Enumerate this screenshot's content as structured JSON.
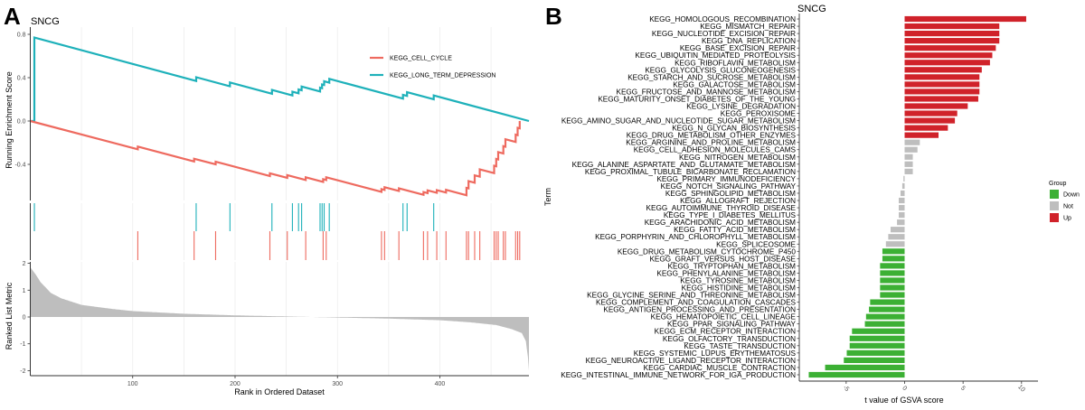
{
  "chart_data": [
    {
      "type": "line",
      "panel_label": "A",
      "title": "SNCG",
      "description": "GSEA enrichment plot",
      "xlabel": "Rank in Ordered Dataset",
      "xlim": [
        0,
        487
      ],
      "xticks": [
        100,
        200,
        300,
        400
      ],
      "top": {
        "ylabel": "Running Enrichment Score",
        "ylim": [
          -0.8,
          0.85
        ],
        "yticks": [
          -0.4,
          0.0,
          0.4,
          0.8
        ],
        "ytick_labels": [
          "-0.4",
          "0.0",
          "0.4",
          "0.8"
        ]
      },
      "legend": {
        "placement": "top-right",
        "entries": [
          "KEGG_CELL_CYCLE",
          "KEGG_LONG_TERM_DEPRESSION"
        ]
      },
      "series": [
        {
          "name": "KEGG_LONG_TERM_DEPRESSION",
          "color": "#1EB1BA",
          "max_es": 0.77,
          "end_es": 0.0,
          "hits": [
            4,
            162,
            195,
            236,
            256,
            262,
            265,
            283,
            285,
            287,
            292,
            364,
            368,
            394
          ]
        },
        {
          "name": "KEGG_CELL_CYCLE",
          "color": "#EE6A5F",
          "min_es": -0.67,
          "end_es": 0.0,
          "hits": [
            105,
            160,
            181,
            234,
            251,
            269,
            286,
            289,
            343,
            346,
            360,
            384,
            388,
            397,
            406,
            426,
            428,
            434,
            439,
            453,
            455,
            457,
            462,
            464,
            474,
            476,
            478
          ]
        }
      ],
      "bottom": {
        "ylabel": "Ranked List Metric",
        "ylim": [
          -2.2,
          2.1
        ],
        "yticks": [
          -2,
          -1,
          0,
          1,
          2
        ],
        "ytick_labels": [
          "-2",
          "-1",
          "0",
          "1",
          "2"
        ],
        "metric_profile": {
          "ranks": [
            0,
            5,
            10,
            20,
            30,
            50,
            80,
            100,
            150,
            200,
            250,
            300,
            350,
            400,
            430,
            455,
            470,
            480,
            484,
            486,
            487
          ],
          "values": [
            1.85,
            1.6,
            1.3,
            0.9,
            0.7,
            0.45,
            0.3,
            0.22,
            0.12,
            0.06,
            0.02,
            -0.02,
            -0.06,
            -0.12,
            -0.2,
            -0.3,
            -0.45,
            -0.6,
            -0.9,
            -1.5,
            -2.0
          ]
        }
      }
    },
    {
      "type": "bar",
      "orientation": "horizontal",
      "panel_label": "B",
      "title": "SNCG",
      "xlabel": "t value of GSVA score",
      "ylabel": "Term",
      "xlim": [
        -8.5,
        12.5
      ],
      "xticks": [
        -5,
        0,
        5,
        10
      ],
      "xtick_labels": [
        "-5",
        "0",
        "5",
        "10"
      ],
      "legend": {
        "title": "Group",
        "placement": "right",
        "entries": [
          {
            "label": "Down",
            "color": "#3CB034"
          },
          {
            "label": "Not",
            "color": "#BEBEBE"
          },
          {
            "label": "Up",
            "color": "#D0222A"
          }
        ]
      },
      "categories": [
        "KEGG_HOMOLOGOUS_RECOMBINATION",
        "KEGG_MISMATCH_REPAIR",
        "KEGG_NUCLEOTIDE_EXCISION_REPAIR",
        "KEGG_DNA_REPLICATION",
        "KEGG_BASE_EXCISION_REPAIR",
        "KEGG_UBIQUITIN_MEDIATED_PROTEOLYSIS",
        "KEGG_RIBOFLAVIN_METABOLISM",
        "KEGG_GLYCOLYSIS_GLUCONEOGENESIS",
        "KEGG_STARCH_AND_SUCROSE_METABOLISM",
        "KEGG_GALACTOSE_METABOLISM",
        "KEGG_FRUCTOSE_AND_MANNOSE_METABOLISM",
        "KEGG_MATURITY_ONSET_DIABETES_OF_THE_YOUNG",
        "KEGG_LYSINE_DEGRADATION",
        "KEGG_PEROXISOME",
        "KEGG_AMINO_SUGAR_AND_NUCLEOTIDE_SUGAR_METABOLISM",
        "KEGG_N_GLYCAN_BIOSYNTHESIS",
        "KEGG_DRUG_METABOLISM_OTHER_ENZYMES",
        "KEGG_ARGININE_AND_PROLINE_METABOLISM",
        "KEGG_CELL_ADHESION_MOLECULES_CAMS",
        "KEGG_NITROGEN_METABOLISM",
        "KEGG_ALANINE_ASPARTATE_AND_GLUTAMATE_METABOLISM",
        "KEGG_PROXIMAL_TUBULE_BICARBONATE_RECLAMATION",
        "KEGG_PRIMARY_IMMUNODEFICIENCY",
        "KEGG_NOTCH_SIGNALING_PATHWAY",
        "KEGG_SPHINGOLIPID_METABOLISM",
        "KEGG_ALLOGRAFT_REJECTION",
        "KEGG_AUTOIMMUNE_THYROID_DISEASE",
        "KEGG_TYPE_I_DIABETES_MELLITUS",
        "KEGG_ARACHIDONIC_ACID_METABOLISM",
        "KEGG_FATTY_ACID_METABOLISM",
        "KEGG_PORPHYRIN_AND_CHLOROPHYLL_METABOLISM",
        "KEGG_SPLICEOSOME",
        "KEGG_DRUG_METABOLISM_CYTOCHROME_P450",
        "KEGG_GRAFT_VERSUS_HOST_DISEASE",
        "KEGG_TRYPTOPHAN_METABOLISM",
        "KEGG_PHENYLALANINE_METABOLISM",
        "KEGG_TYROSINE_METABOLISM",
        "KEGG_HISTIDINE_METABOLISM",
        "KEGG_GLYCINE_SERINE_AND_THREONINE_METABOLISM",
        "KEGG_COMPLEMENT_AND_COAGULATION_CASCADES",
        "KEGG_ANTIGEN_PROCESSING_AND_PRESENTATION",
        "KEGG_HEMATOPOIETIC_CELL_LINEAGE",
        "KEGG_PPAR_SIGNALING_PATHWAY",
        "KEGG_ECM_RECEPTOR_INTERACTION",
        "KEGG_OLFACTORY_TRANSDUCTION",
        "KEGG_TASTE_TRANSDUCTION",
        "KEGG_SYSTEMIC_LUPUS_ERYTHEMATOSUS",
        "KEGG_NEUROACTIVE_LIGAND_RECEPTOR_INTERACTION",
        "KEGG_CARDIAC_MUSCLE_CONTRACTION",
        "KEGG_INTESTINAL_IMMUNE_NETWORK_FOR_IGA_PRODUCTION"
      ],
      "values": [
        10.4,
        8.1,
        8.1,
        8.1,
        7.8,
        7.5,
        7.3,
        6.6,
        6.4,
        6.4,
        6.4,
        6.3,
        5.4,
        4.5,
        4.3,
        3.7,
        2.9,
        1.3,
        1.1,
        0.7,
        0.7,
        0.7,
        -0.1,
        -0.2,
        -0.35,
        -0.5,
        -0.5,
        -0.5,
        -0.65,
        -1.2,
        -1.4,
        -1.6,
        -1.9,
        -1.9,
        -2.1,
        -2.1,
        -2.1,
        -2.1,
        -2.1,
        -2.95,
        -3.05,
        -3.3,
        -3.4,
        -4.5,
        -4.7,
        -4.7,
        -4.95,
        -5.2,
        -6.8,
        -8.2
      ],
      "groups": [
        "Up",
        "Up",
        "Up",
        "Up",
        "Up",
        "Up",
        "Up",
        "Up",
        "Up",
        "Up",
        "Up",
        "Up",
        "Up",
        "Up",
        "Up",
        "Up",
        "Up",
        "Not",
        "Not",
        "Not",
        "Not",
        "Not",
        "Not",
        "Not",
        "Not",
        "Not",
        "Not",
        "Not",
        "Not",
        "Not",
        "Not",
        "Not",
        "Down",
        "Down",
        "Down",
        "Down",
        "Down",
        "Down",
        "Down",
        "Down",
        "Down",
        "Down",
        "Down",
        "Down",
        "Down",
        "Down",
        "Down",
        "Down",
        "Down",
        "Down"
      ]
    }
  ]
}
